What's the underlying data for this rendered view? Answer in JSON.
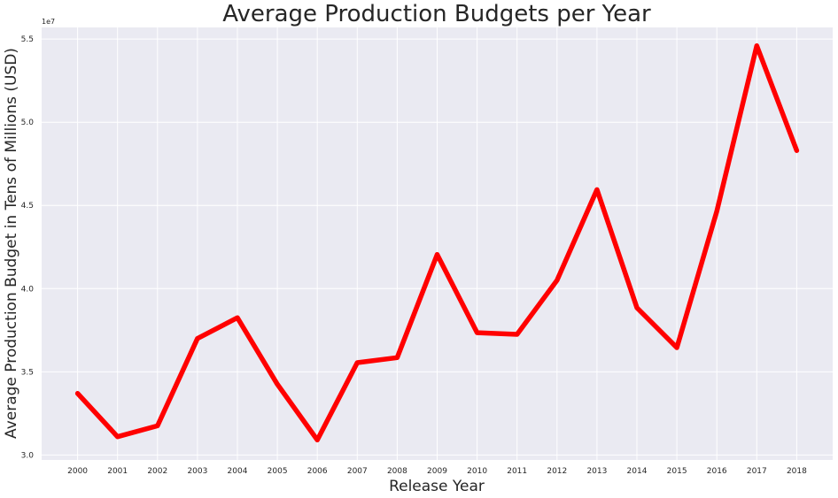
{
  "chart_data": {
    "type": "line",
    "title": "Average Production Budgets per Year",
    "xlabel": "Release Year",
    "ylabel": "Average Production Budget in Tens of Millions (USD)",
    "y_offset_label": "1e7",
    "x": [
      2000,
      2001,
      2002,
      2003,
      2004,
      2005,
      2006,
      2007,
      2008,
      2009,
      2010,
      2011,
      2012,
      2013,
      2014,
      2015,
      2016,
      2017,
      2018
    ],
    "x_tick_labels": [
      "2000",
      "2001",
      "2002",
      "2003",
      "2004",
      "2005",
      "2006",
      "2007",
      "2008",
      "2009",
      "2010",
      "2011",
      "2012",
      "2013",
      "2014",
      "2015",
      "2016",
      "2017",
      "2018"
    ],
    "series": [
      {
        "values": [
          33700000,
          31100000,
          31750000,
          37000000,
          38250000,
          34250000,
          30900000,
          35550000,
          35850000,
          42050000,
          37350000,
          37250000,
          40500000,
          45950000,
          38850000,
          36450000,
          44650000,
          54600000,
          48300000
        ],
        "color": "#ff0000"
      }
    ],
    "y_ticks": [
      30000000,
      35000000,
      40000000,
      45000000,
      50000000,
      55000000
    ],
    "y_tick_labels": [
      "3.0",
      "3.5",
      "4.0",
      "4.5",
      "5.0",
      "5.5"
    ],
    "xlim": [
      1999.1,
      2018.9
    ],
    "ylim": [
      29700000,
      55700000
    ],
    "grid": true,
    "legend": "none",
    "background": "#eaeaf2"
  }
}
